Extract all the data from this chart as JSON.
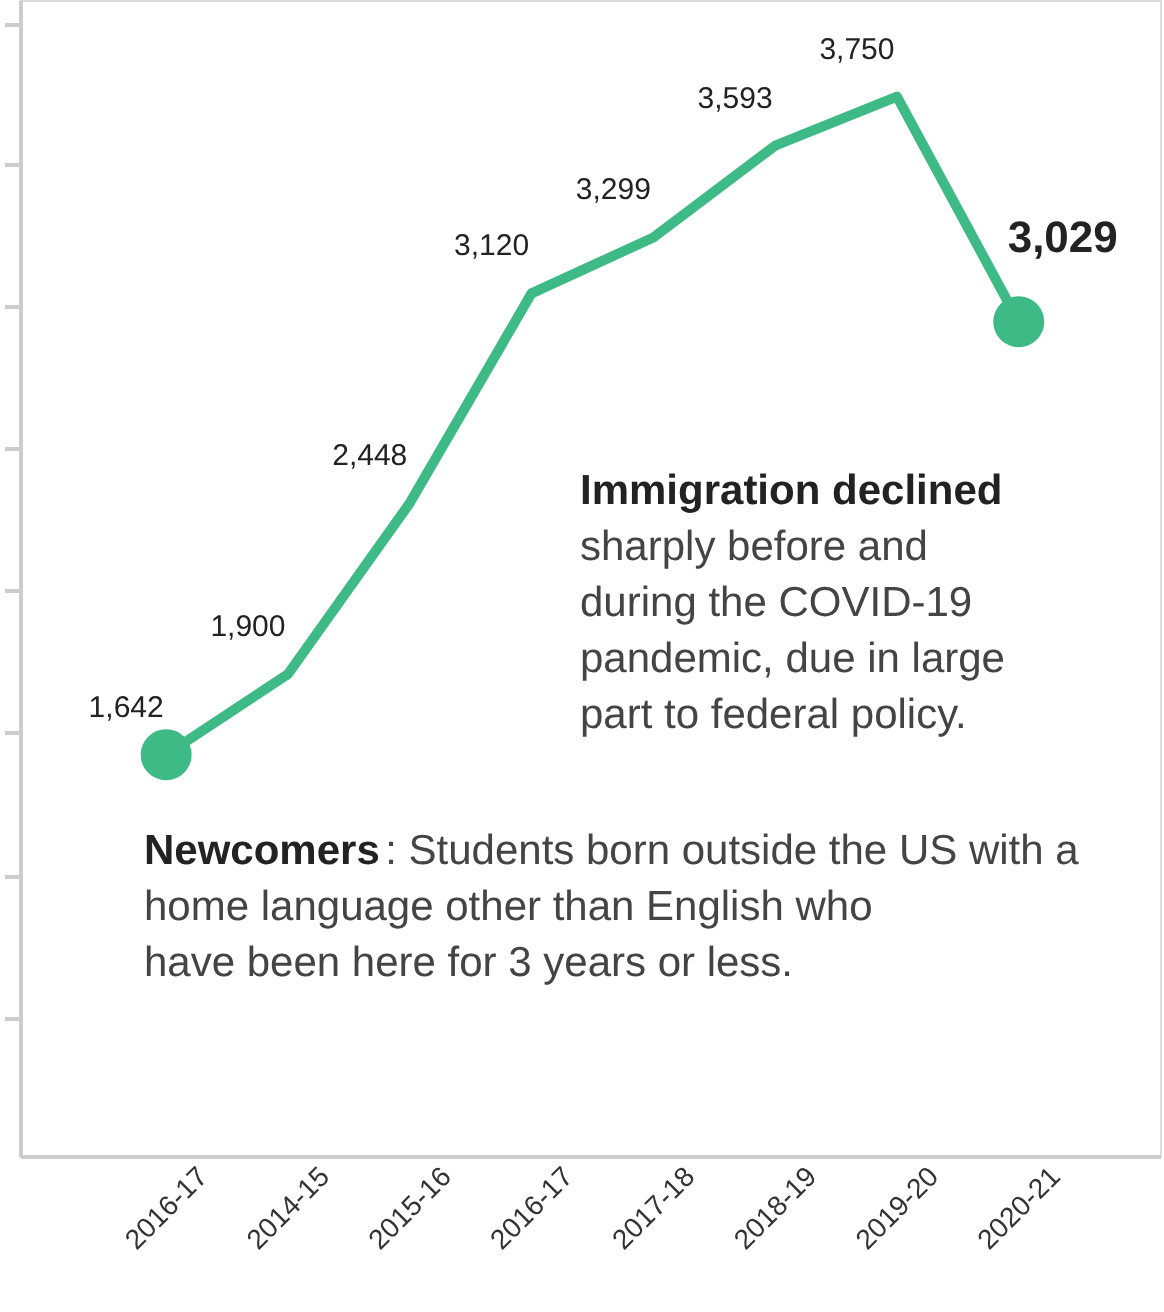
{
  "chart_data": {
    "type": "line",
    "categories": [
      "2016-17",
      "2014-15",
      "2015-16",
      "2016-17",
      "2017-18",
      "2018-19",
      "2019-20",
      "2020-21"
    ],
    "series": [
      {
        "color": "#3dba85",
        "values": [
          1642,
          1900,
          2448,
          3120,
          3299,
          3593,
          3750,
          3029
        ],
        "value_labels": [
          "1,642",
          "1,900",
          "2,448",
          "3,120",
          "3,299",
          "3,593",
          "3,750",
          "3,029"
        ]
      }
    ],
    "tick_labels": "x",
    "grid": false,
    "marker": "circle",
    "line_style": "solid",
    "annotations": [
      "Immigration declined",
      "sharply before and during the COVID-19 pandemic, due in large part to federal policy.",
      "Newcomers",
      ": Students born outside the US with a home language other than English who have been here for 3 years or less."
    ]
  }
}
